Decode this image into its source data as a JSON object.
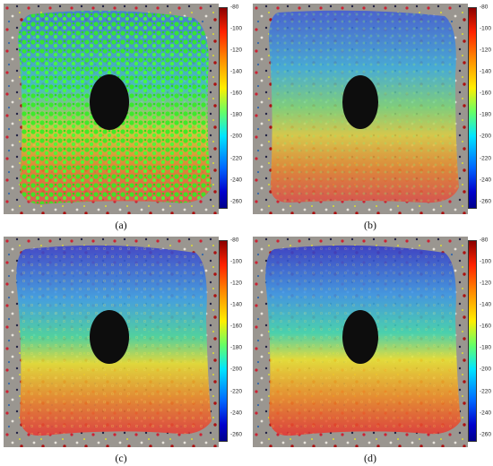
{
  "panels": [
    {
      "id": "a",
      "caption": "(a)"
    },
    {
      "id": "b",
      "caption": "(b)"
    },
    {
      "id": "c",
      "caption": "(c)"
    },
    {
      "id": "d",
      "caption": "(d)"
    }
  ],
  "colorbar": {
    "ticks": [
      "-80",
      "-100",
      "-120",
      "-140",
      "-160",
      "-180",
      "-200",
      "-220",
      "-240",
      "-260"
    ],
    "colormap": "jet",
    "colors": [
      "#8b0000",
      "#ff0000",
      "#ffff00",
      "#00ffff",
      "#0000ff",
      "#00008b"
    ]
  }
}
